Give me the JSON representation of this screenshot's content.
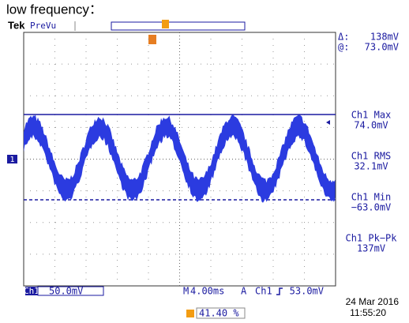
{
  "header": {
    "title": "low frequency：",
    "brand": "Tek",
    "mode": "PreVu"
  },
  "cursor": {
    "delta_label": "Δ:",
    "delta_value": "138mV",
    "at_label": "@:",
    "at_value": "73.0mV"
  },
  "channel_marker": "1",
  "measurements": [
    {
      "label": "Ch1 Max",
      "value": "74.0mV"
    },
    {
      "label": "Ch1 RMS",
      "value": "32.1mV"
    },
    {
      "label": "Ch1 Min",
      "value": "−63.0mV"
    },
    {
      "label": "Ch1 Pk−Pk",
      "value": "137mV"
    }
  ],
  "status": {
    "channel": "Ch1",
    "scale": "50.0mV",
    "timebase_label": "M",
    "timebase": "4.00ms",
    "trigger_mode": "A",
    "trigger_source": "Ch1",
    "trigger_level": "53.0mV",
    "trigger_position": "41.40 %"
  },
  "timestamp": {
    "date": "24 Mar  2016",
    "time": "11:55:20"
  }
}
